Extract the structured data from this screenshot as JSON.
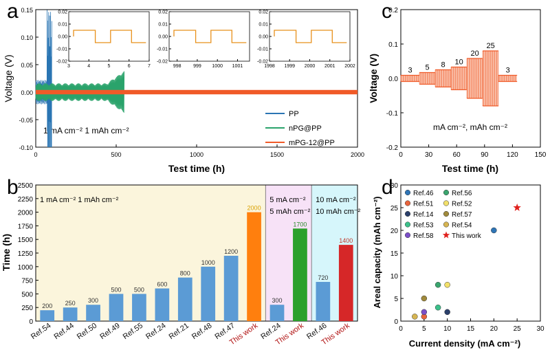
{
  "panels": {
    "a": "a",
    "b": "b",
    "c": "c",
    "d": "d"
  },
  "chart_data": [
    {
      "id": "a",
      "type": "line",
      "xlabel": "Test time (h)",
      "ylabel": "Voltage (V)",
      "xlim": [
        0,
        2000
      ],
      "ylim": [
        -0.1,
        0.15
      ],
      "xticks": [
        "0",
        "500",
        "1000",
        "1500",
        "2000"
      ],
      "yticks": [
        "-0.10",
        "-0.05",
        "0.00",
        "0.05",
        "0.10",
        "0.15"
      ],
      "annotation": "1 mA cm⁻²   1 mAh cm⁻²",
      "legend_position": "bottom-right",
      "series": [
        {
          "name": "PP",
          "color": "#2a75b3",
          "duration_h": 100,
          "max_amplitude_V": 0.15
        },
        {
          "name": "nPG@PP",
          "color": "#2aa36b",
          "duration_h": 550,
          "max_amplitude_V": 0.035
        },
        {
          "name": "mPG-12@PP",
          "color": "#f05a28",
          "duration_h": 2000,
          "max_amplitude_V": 0.004
        }
      ],
      "insets": [
        {
          "xticks": [
            "3",
            "4",
            "5",
            "6",
            "7"
          ],
          "yticks": [
            "0.02",
            "0.01",
            "0.00",
            "-0.01",
            "-0.02"
          ],
          "xlim": [
            3,
            7
          ],
          "ylim": [
            -0.02,
            0.02
          ]
        },
        {
          "xticks": [
            "998",
            "999",
            "1000",
            "1001"
          ],
          "yticks": [
            "0.02",
            "0.01",
            "0.00",
            "-0.01",
            "-0.02"
          ],
          "xlim": [
            997.6,
            1001.6
          ],
          "ylim": [
            -0.02,
            0.02
          ]
        },
        {
          "xticks": [
            "1998",
            "1999",
            "2000",
            "2001",
            "2002"
          ],
          "yticks": [
            "0.02",
            "0.01",
            "0.00",
            "-0.01",
            "-0.02"
          ],
          "xlim": [
            1998,
            2002
          ],
          "ylim": [
            -0.02,
            0.02
          ]
        }
      ]
    },
    {
      "id": "b",
      "type": "bar",
      "ylabel": "Time (h)",
      "ylim": [
        0,
        2500
      ],
      "yticks": [
        "0",
        "250",
        "500",
        "750",
        "1000",
        "1250",
        "1500",
        "1750",
        "2000",
        "2250",
        "2500"
      ],
      "categories": [
        "Ref.54",
        "Ref.44",
        "Ref.50",
        "Ref.49",
        "Ref.55",
        "Ref.24",
        "Ref.21",
        "Ref.48",
        "Ref.47",
        "This work",
        "Ref.24",
        "This work",
        "Ref.46",
        "This work"
      ],
      "values": [
        200,
        250,
        300,
        500,
        500,
        600,
        800,
        1000,
        1200,
        2000,
        300,
        1700,
        720,
        1400
      ],
      "value_labels": [
        "200",
        "250",
        "300",
        "500",
        "500",
        "600",
        "800",
        "1000",
        "1200",
        "2000",
        "300",
        "1700",
        "720",
        "1400"
      ],
      "bar_colors": [
        "#5b9bd5",
        "#5b9bd5",
        "#5b9bd5",
        "#5b9bd5",
        "#5b9bd5",
        "#5b9bd5",
        "#5b9bd5",
        "#5b9bd5",
        "#5b9bd5",
        "#ff7f0e",
        "#5b9bd5",
        "#2ca02c",
        "#5b9bd5",
        "#d62728"
      ],
      "label_colors": [
        "#333333",
        "#333333",
        "#333333",
        "#333333",
        "#333333",
        "#333333",
        "#333333",
        "#333333",
        "#333333",
        "#d9a000",
        "#333333",
        "#2a8a2a",
        "#333333",
        "#c0392b"
      ],
      "xlabel_colors": [
        "#111111",
        "#111111",
        "#111111",
        "#111111",
        "#111111",
        "#111111",
        "#111111",
        "#111111",
        "#111111",
        "#b01010",
        "#111111",
        "#b01010",
        "#111111",
        "#b01010"
      ],
      "groups": [
        {
          "first": 0,
          "last": 9,
          "color": "#fbf5dc",
          "line1": "1 mA cm⁻²   1 mAh cm⁻²",
          "line2": ""
        },
        {
          "first": 10,
          "last": 11,
          "color": "#f7e2f7",
          "line1": "5 mA cm⁻²",
          "line2": "5 mAh cm⁻²"
        },
        {
          "first": 12,
          "last": 13,
          "color": "#d6f6fb",
          "line1": "10 mA cm⁻²",
          "line2": "10 mAh cm⁻²"
        }
      ]
    },
    {
      "id": "c",
      "type": "line",
      "xlabel": "Test time (h)",
      "ylabel": "Voltage (V)",
      "xlim": [
        0,
        150
      ],
      "ylim": [
        -0.2,
        0.2
      ],
      "xticks": [
        "0",
        "30",
        "60",
        "90",
        "120",
        "150"
      ],
      "yticks": [
        "-0.2",
        "-0.1",
        "0.0",
        "0.1",
        "0.2"
      ],
      "annotation": "mA cm⁻²,  mAh cm⁻²",
      "series_color": "#f05a28",
      "segments": [
        {
          "label": "3",
          "x0": 0,
          "x1": 20,
          "v": 0.009
        },
        {
          "label": "5",
          "x0": 20,
          "x1": 37,
          "v": 0.017
        },
        {
          "label": "8",
          "x0": 37,
          "x1": 54,
          "v": 0.025
        },
        {
          "label": "10",
          "x0": 54,
          "x1": 71,
          "v": 0.033
        },
        {
          "label": "20",
          "x0": 71,
          "x1": 88,
          "v": 0.058
        },
        {
          "label": "25",
          "x0": 88,
          "x1": 105,
          "v": 0.08
        },
        {
          "label": "3",
          "x0": 105,
          "x1": 125,
          "v": 0.009
        }
      ]
    },
    {
      "id": "d",
      "type": "scatter",
      "xlabel": "Current density (mA cm⁻²)",
      "ylabel": "Areal capacity (mAh cm⁻²)",
      "xlim": [
        0,
        30
      ],
      "ylim": [
        0,
        30
      ],
      "xticks": [
        "0",
        "5",
        "10",
        "15",
        "20",
        "25",
        "30"
      ],
      "yticks": [
        "0",
        "5",
        "10",
        "15",
        "20",
        "25",
        "30"
      ],
      "legend_position": "top-left",
      "points": [
        {
          "name": "Ref.46",
          "x": 20,
          "y": 20,
          "color": "#2e75b6",
          "marker": "circle"
        },
        {
          "name": "Ref.51",
          "x": 5,
          "y": 1,
          "color": "#e8643c",
          "marker": "circle"
        },
        {
          "name": "Ref.14",
          "x": 10,
          "y": 2,
          "color": "#2b3f6b",
          "marker": "circle"
        },
        {
          "name": "Ref.53",
          "x": 8,
          "y": 3,
          "color": "#3cc08a",
          "marker": "circle"
        },
        {
          "name": "Ref.58",
          "x": 5,
          "y": 2,
          "color": "#7b4fc9",
          "marker": "circle"
        },
        {
          "name": "Ref.56",
          "x": 8,
          "y": 8,
          "color": "#3aa56e",
          "marker": "circle"
        },
        {
          "name": "Ref.52",
          "x": 10,
          "y": 8,
          "color": "#f2e06a",
          "marker": "circle"
        },
        {
          "name": "Ref.57",
          "x": 5,
          "y": 5,
          "color": "#a08a3c",
          "marker": "circle"
        },
        {
          "name": "Ref.54",
          "x": 3,
          "y": 1,
          "color": "#d6b552",
          "marker": "circle"
        },
        {
          "name": "This work",
          "x": 25,
          "y": 25,
          "color": "#e0201c",
          "marker": "star"
        }
      ]
    }
  ]
}
